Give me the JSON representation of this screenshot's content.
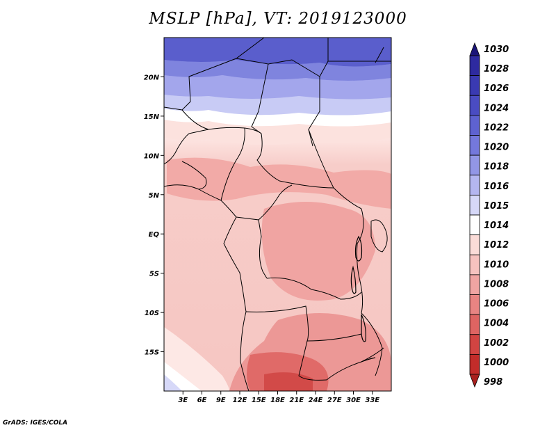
{
  "title": "MSLP [hPa], VT: 2019123000",
  "credit": "GrADS: IGES/COLA",
  "map": {
    "lon_min": 0,
    "lon_max": 36,
    "lat_min": -20,
    "lat_max": 25,
    "lat_ticks": [
      {
        "value": 20,
        "label": "20N"
      },
      {
        "value": 15,
        "label": "15N"
      },
      {
        "value": 10,
        "label": "10N"
      },
      {
        "value": 5,
        "label": "5N"
      },
      {
        "value": 0,
        "label": "EQ"
      },
      {
        "value": -5,
        "label": "5S"
      },
      {
        "value": -10,
        "label": "10S"
      },
      {
        "value": -15,
        "label": "15S"
      }
    ],
    "lon_ticks": [
      {
        "value": 3,
        "label": "3E"
      },
      {
        "value": 6,
        "label": "6E"
      },
      {
        "value": 9,
        "label": "9E"
      },
      {
        "value": 12,
        "label": "12E"
      },
      {
        "value": 15,
        "label": "15E"
      },
      {
        "value": 18,
        "label": "18E"
      },
      {
        "value": 21,
        "label": "21E"
      },
      {
        "value": 24,
        "label": "24E"
      },
      {
        "value": 27,
        "label": "27E"
      },
      {
        "value": 30,
        "label": "30E"
      },
      {
        "value": 33,
        "label": "33E"
      }
    ]
  },
  "colorbar": {
    "levels": [
      {
        "label": "1030",
        "color": "#241a8c"
      },
      {
        "label": "1028",
        "color": "#2e2aa0"
      },
      {
        "label": "1026",
        "color": "#3a3ab2"
      },
      {
        "label": "1024",
        "color": "#4a4cc2"
      },
      {
        "label": "1022",
        "color": "#5e62d0"
      },
      {
        "label": "1020",
        "color": "#7478dc"
      },
      {
        "label": "1018",
        "color": "#9296e6"
      },
      {
        "label": "1016",
        "color": "#b4b6f0"
      },
      {
        "label": "1015",
        "color": "#d6d8f8"
      },
      {
        "label": "1014",
        "color": "#ffffff"
      },
      {
        "label": "1012",
        "color": "#fbdcd8"
      },
      {
        "label": "1010",
        "color": "#f6c2bf"
      },
      {
        "label": "1008",
        "color": "#f0a4a2"
      },
      {
        "label": "1006",
        "color": "#e88482"
      },
      {
        "label": "1004",
        "color": "#de6462"
      },
      {
        "label": "1002",
        "color": "#d24442"
      },
      {
        "label": "1000",
        "color": "#c22c2a"
      },
      {
        "label": "998",
        "color": "#a8201e"
      }
    ],
    "top_arrow_color": "#1a1478",
    "bottom_arrow_color": "#a8201e"
  }
}
